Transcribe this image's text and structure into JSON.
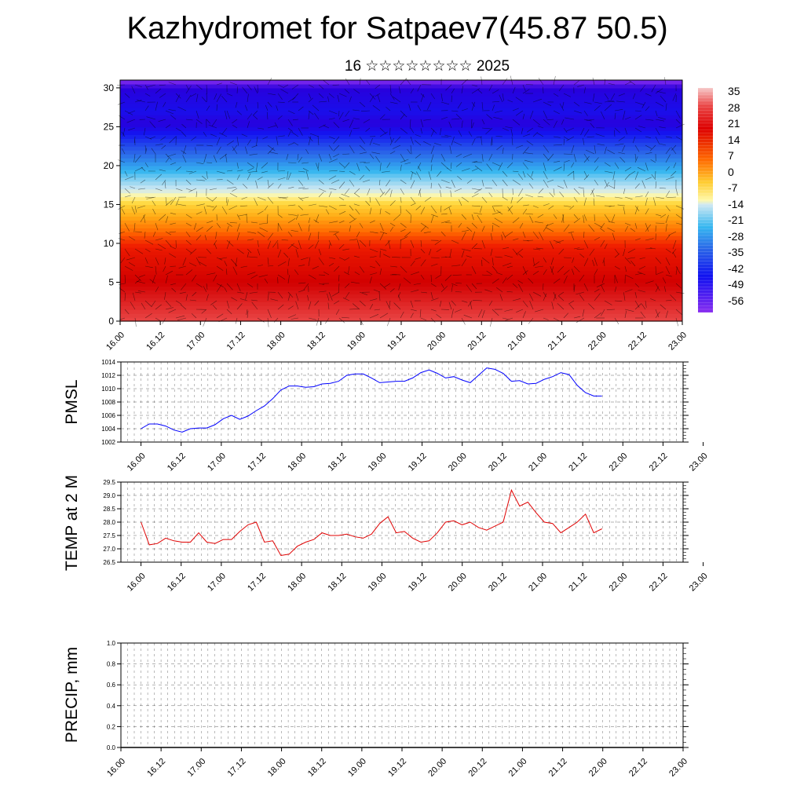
{
  "title": "Kazhydromet for Satpaev7(45.87 50.5)",
  "subtitle": "16 ☆☆☆☆☆☆☆☆ 2025",
  "time_labels": [
    "16.00",
    "16.12",
    "17.00",
    "17.12",
    "18.00",
    "18.12",
    "19.00",
    "19.12",
    "20.00",
    "20.12",
    "21.00",
    "21.12",
    "22.00",
    "22.12",
    "23.00"
  ],
  "colorbar": {
    "labels": [
      "35",
      "28",
      "21",
      "14",
      "7",
      "0",
      "-7",
      "-14",
      "-21",
      "-28",
      "-35",
      "-42",
      "-49",
      "-56"
    ]
  },
  "chart_data": [
    {
      "type": "heatmap",
      "name": "cross-section",
      "ylim": [
        0,
        31
      ],
      "yticks": [
        0,
        5,
        10,
        15,
        20,
        25,
        30
      ],
      "xlim": [
        0,
        14
      ],
      "value_range": [
        -60,
        38
      ],
      "vertical_profile": [
        {
          "level": 0,
          "value": 32
        },
        {
          "level": 5,
          "value": 26
        },
        {
          "level": 9,
          "value": 20
        },
        {
          "level": 11,
          "value": 14
        },
        {
          "level": 13,
          "value": 6
        },
        {
          "level": 15,
          "value": -3
        },
        {
          "level": 16.5,
          "value": -12
        },
        {
          "level": 18.5,
          "value": -20
        },
        {
          "level": 20.5,
          "value": -30
        },
        {
          "level": 22.5,
          "value": -40
        },
        {
          "level": 24.5,
          "value": -52
        },
        {
          "level": 25.5,
          "value": -58
        },
        {
          "level": 27,
          "value": -52
        },
        {
          "level": 31,
          "value": -60
        }
      ]
    },
    {
      "type": "line",
      "name": "PMSL",
      "ylabel": "PMSL",
      "ylim": [
        1002,
        1014
      ],
      "yticks": [
        "1014",
        "1012",
        "1010",
        "1008",
        "1006",
        "1004",
        "1002"
      ],
      "color": "#0000ff",
      "x_start": 0.5,
      "x_step": 0.5,
      "xlim": [
        0,
        14
      ],
      "values": [
        1004.0,
        1004.7,
        1004.7,
        1004.4,
        1003.8,
        1003.5,
        1004.0,
        1004.1,
        1004.1,
        1004.6,
        1005.5,
        1006.0,
        1005.4,
        1005.9,
        1006.7,
        1007.4,
        1008.5,
        1009.8,
        1010.4,
        1010.4,
        1010.2,
        1010.3,
        1010.7,
        1010.8,
        1011.1,
        1012.0,
        1012.2,
        1012.2,
        1011.6,
        1010.9,
        1011.0,
        1011.1,
        1011.1,
        1011.6,
        1012.4,
        1012.8,
        1012.3,
        1011.6,
        1011.8,
        1011.3,
        1010.9,
        1012.0,
        1013.1,
        1012.9,
        1012.3,
        1011.1,
        1011.2,
        1010.7,
        1010.8,
        1011.4,
        1011.8,
        1012.4,
        1012.1,
        1010.5,
        1009.4,
        1008.9,
        1008.9
      ]
    },
    {
      "type": "line",
      "name": "TEMP at 2 M",
      "ylabel": "TEMP at 2 M",
      "ylim": [
        26.5,
        29.5
      ],
      "yticks": [
        "29.5",
        "29.0",
        "28.5",
        "28.0",
        "27.5",
        "27.0",
        "26.5"
      ],
      "color": "#e00000",
      "x_start": 0.5,
      "x_step": 0.5,
      "xlim": [
        0,
        14
      ],
      "values": [
        28.0,
        27.15,
        27.2,
        27.4,
        27.3,
        27.25,
        27.25,
        27.6,
        27.25,
        27.2,
        27.35,
        27.35,
        27.65,
        27.9,
        28.0,
        27.25,
        27.3,
        26.75,
        26.8,
        27.1,
        27.25,
        27.35,
        27.6,
        27.5,
        27.5,
        27.55,
        27.45,
        27.4,
        27.55,
        27.95,
        28.2,
        27.6,
        27.65,
        27.4,
        27.25,
        27.3,
        27.6,
        28.0,
        28.05,
        27.9,
        28.0,
        27.8,
        27.7,
        27.85,
        28.0,
        29.2,
        28.6,
        28.75,
        28.35,
        28.0,
        27.95,
        27.6,
        27.8,
        28.0,
        28.3,
        27.6,
        27.75
      ]
    },
    {
      "type": "line",
      "name": "PRECIP, mm",
      "ylabel": "PRECIP, mm",
      "ylim": [
        0,
        1.0
      ],
      "yticks": [
        "1.0",
        "0.8",
        "0.6",
        "0.4",
        "0.2",
        "0.0"
      ],
      "color": "#000000",
      "values": []
    }
  ]
}
